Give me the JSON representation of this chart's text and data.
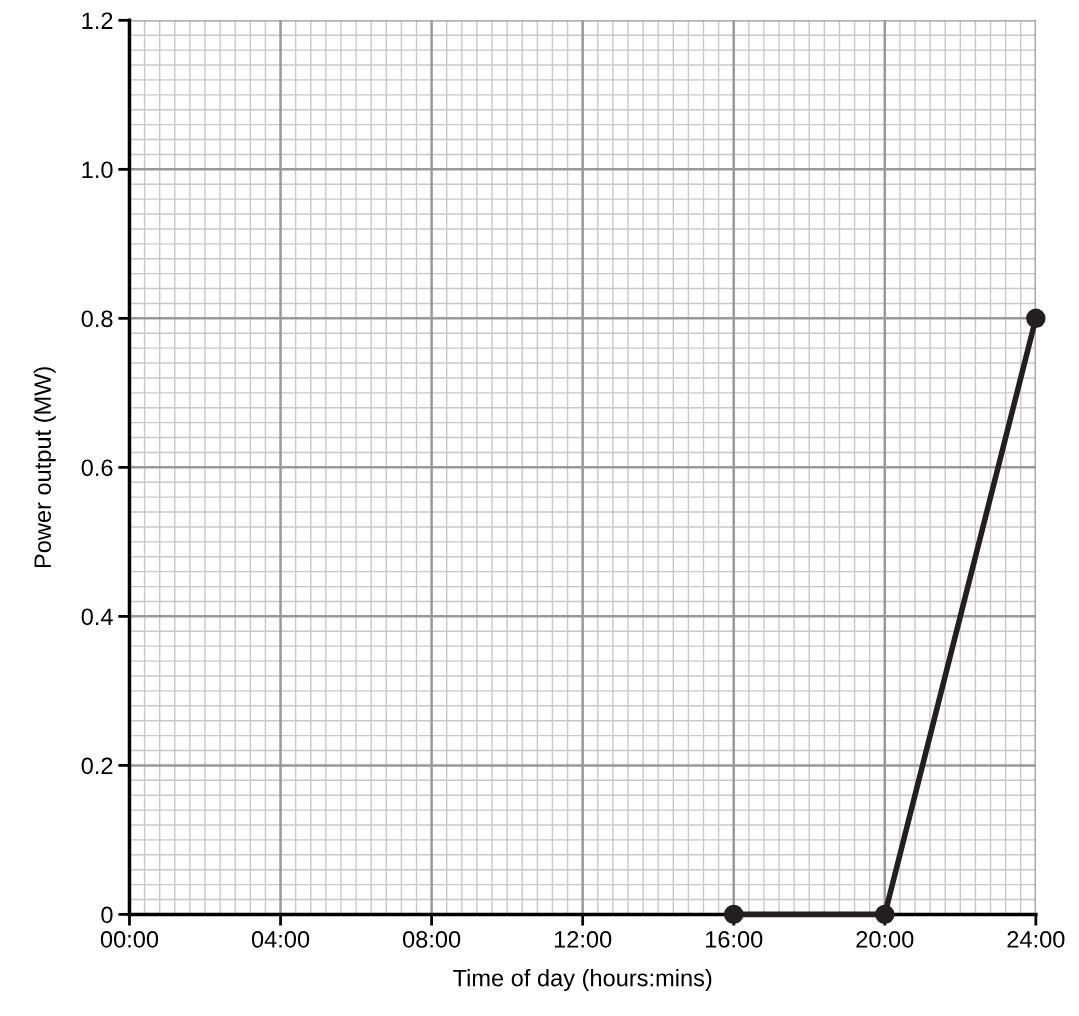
{
  "chart_data": {
    "type": "line",
    "xlabel": "Time of day (hours:mins)",
    "ylabel": "Power output (MW)",
    "x": [
      16,
      20,
      24
    ],
    "series": [
      {
        "color": "#231f20",
        "values": [
          0,
          0,
          0.8
        ]
      }
    ],
    "marker": "circle",
    "line_style": "solid",
    "grid": true,
    "xlim": [
      0,
      24
    ],
    "ylim": [
      0,
      1.2
    ],
    "xticks": [
      {
        "value": 0,
        "label": "00:00"
      },
      {
        "value": 4,
        "label": "04:00"
      },
      {
        "value": 8,
        "label": "08:00"
      },
      {
        "value": 12,
        "label": "12:00"
      },
      {
        "value": 16,
        "label": "16:00"
      },
      {
        "value": 20,
        "label": "20:00"
      },
      {
        "value": 24,
        "label": "24:00"
      }
    ],
    "yticks": [
      0,
      0.2,
      0.4,
      0.6,
      0.8,
      {
        "value": 1,
        "label": "1.0"
      },
      1.2
    ]
  }
}
